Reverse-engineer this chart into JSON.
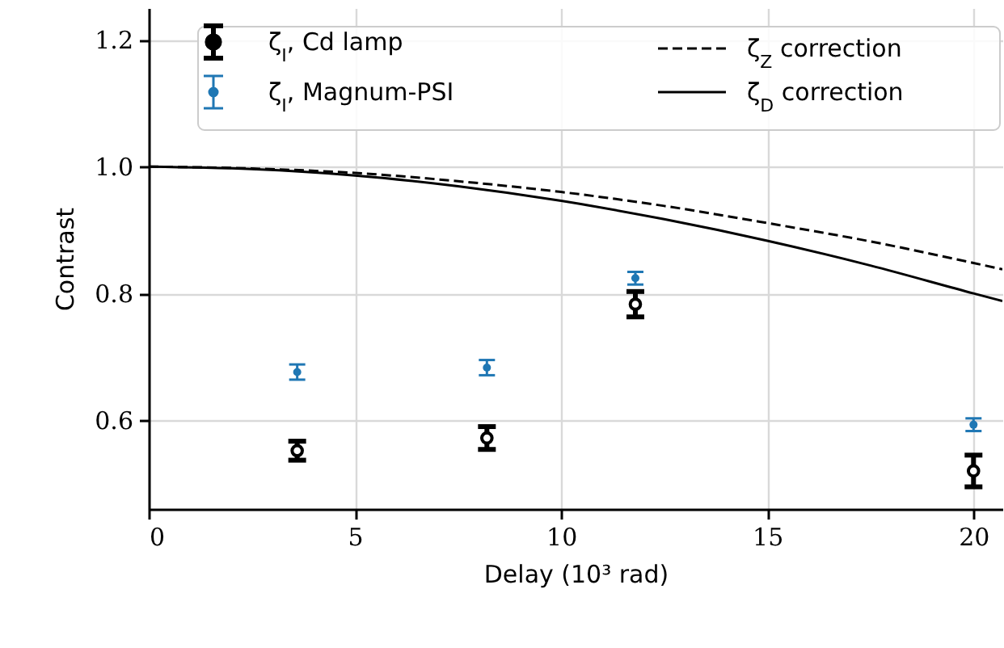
{
  "chart_data": {
    "type": "scatter",
    "xlabel": "Delay (10³ rad)",
    "ylabel": "Contrast",
    "xlim": [
      0,
      20.7
    ],
    "xticks": [
      0,
      5,
      10,
      15,
      20
    ],
    "ylim": [
      0.46,
      1.25
    ],
    "yticks": [
      0.6,
      0.8,
      {
        "value": 1,
        "label": "1.0"
      },
      1.2
    ],
    "grid": true,
    "legend": "top",
    "marker": "circle",
    "series": [
      {
        "name": "ζ$_{I}$, Cd lamp",
        "type": "scatter",
        "color": "#000000",
        "x": [
          3.6,
          8.2,
          11.8,
          20.0
        ],
        "values": [
          0.552,
          0.572,
          0.783,
          0.52
        ],
        "errors": [
          0.015,
          0.018,
          0.02,
          0.025
        ]
      },
      {
        "name": "ζ$_{I}$, Magnum-PSI",
        "color": "#1f77b4",
        "x": [
          3.6,
          8.2,
          11.8,
          20.0
        ],
        "values": [
          0.676,
          0.683,
          0.824,
          0.593
        ],
        "errors": [
          0.012,
          0.012,
          0.01,
          0.01
        ]
      },
      {
        "name": "ζ$_{Z}$ correction",
        "type": "line",
        "color": "#000000",
        "line_style": "dashed",
        "marker": "none",
        "x": [
          0,
          2.5,
          5,
          7.5,
          10,
          12.5,
          15,
          17.5,
          20,
          20.7
        ],
        "values": [
          1.0,
          0.997,
          0.99,
          0.977,
          0.96,
          0.938,
          0.911,
          0.882,
          0.848,
          0.838
        ]
      },
      {
        "name": "ζ$_{D}$ correction",
        "type": "line",
        "color": "#000000",
        "line_style": "solid",
        "marker": "none",
        "x": [
          0,
          2.5,
          5,
          7.5,
          10,
          12.5,
          15,
          17.5,
          20,
          20.7
        ],
        "values": [
          1.0,
          0.996,
          0.986,
          0.969,
          0.946,
          0.917,
          0.883,
          0.844,
          0.8,
          0.788
        ]
      }
    ]
  }
}
